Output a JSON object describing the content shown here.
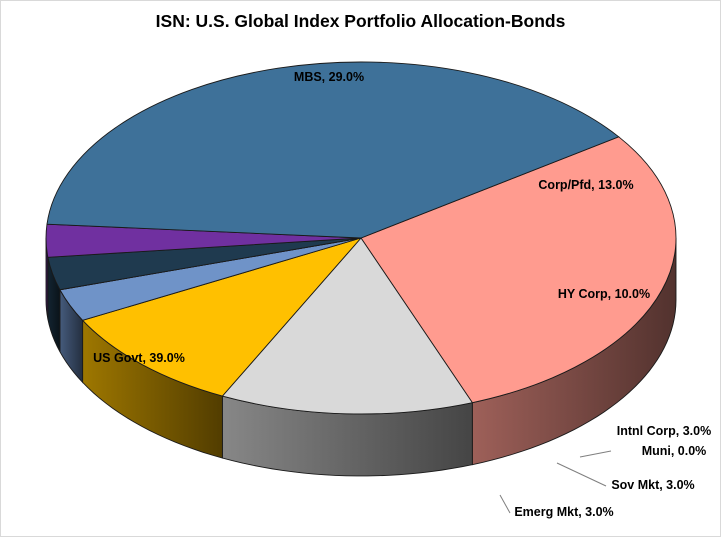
{
  "chart_data": {
    "type": "pie",
    "title": "ISN: U.S. Global Index Portfolio Allocation-Bonds",
    "slices": [
      {
        "name": "MBS",
        "value": 29.0,
        "label": "MBS, 29.0%",
        "color": "#ff9b8f"
      },
      {
        "name": "Corp/Pfd",
        "value": 13.0,
        "label": "Corp/Pfd, 13.0%",
        "color": "#d9d9d9"
      },
      {
        "name": "HY Corp",
        "value": 10.0,
        "label": "HY Corp, 10.0%",
        "color": "#ffc000"
      },
      {
        "name": "Intnl Corp",
        "value": 3.0,
        "label": "Intnl Corp, 3.0%",
        "color": "#6f93c8"
      },
      {
        "name": "Muni",
        "value": 0.0,
        "label": "Muni, 0.0%",
        "color": "#9bbb59"
      },
      {
        "name": "Sov Mkt",
        "value": 3.0,
        "label": "Sov Mkt, 3.0%",
        "color": "#1f3a4f"
      },
      {
        "name": "Emerg Mkt",
        "value": 3.0,
        "label": "Emerg Mkt, 3.0%",
        "color": "#7030a0"
      },
      {
        "name": "US Govt",
        "value": 39.0,
        "label": "US Govt, 39.0%",
        "color": "#3e7199"
      }
    ],
    "style": "3d-pie",
    "legend": "none"
  }
}
